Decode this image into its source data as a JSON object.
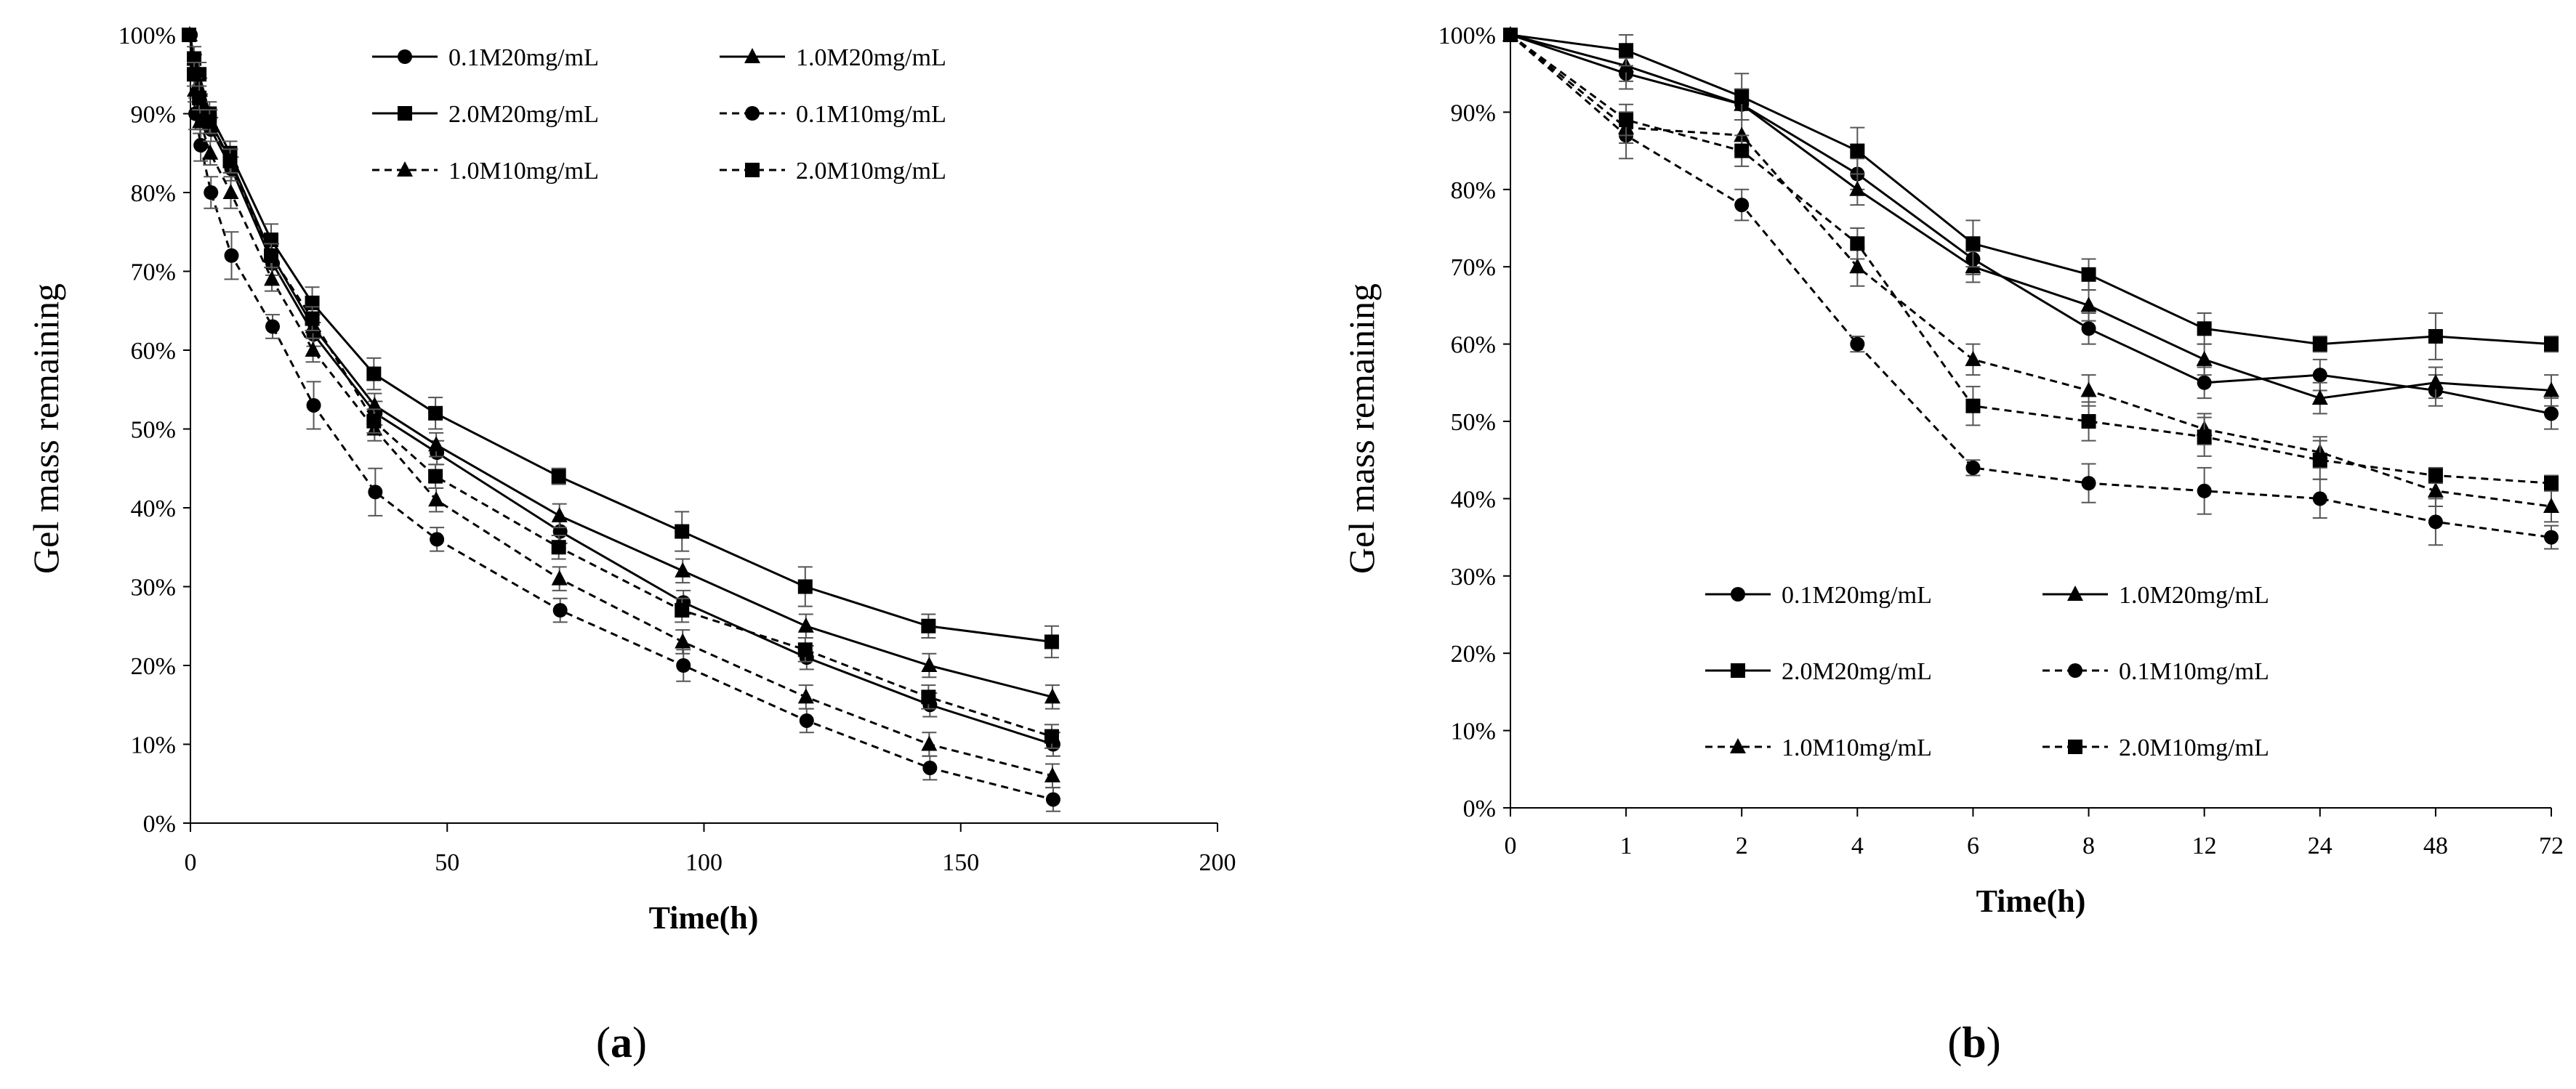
{
  "chart_data": [
    {
      "id": "a",
      "type": "line",
      "caption_open": "(",
      "caption_letter": "a",
      "caption_close": ")",
      "xlabel": "Time(h)",
      "ylabel": "Gel mass remaining",
      "xlim": [
        0,
        200
      ],
      "ylim": [
        0,
        100
      ],
      "x_ticks": [
        0,
        50,
        100,
        150,
        200
      ],
      "y_ticks": [
        "0%",
        "10%",
        "20%",
        "30%",
        "40%",
        "50%",
        "60%",
        "70%",
        "80%",
        "90%",
        "100%"
      ],
      "legend_position": "top-right",
      "x": [
        0,
        1,
        2,
        4,
        8,
        16,
        24,
        36,
        48,
        72,
        96,
        120,
        144,
        168
      ],
      "series": [
        {
          "name": "0.1M20mg/mL",
          "marker": "circle",
          "dashed": false,
          "values": [
            100,
            95,
            91,
            88,
            83,
            71,
            62,
            52,
            47,
            37,
            28,
            21,
            15,
            10
          ],
          "errors": [
            0,
            1.5,
            1.5,
            1.5,
            1.5,
            1.5,
            1.5,
            1.5,
            1.5,
            1.5,
            1.5,
            1.5,
            1.5,
            1.5
          ]
        },
        {
          "name": "1.0M20mg/mL",
          "marker": "triangle",
          "dashed": false,
          "values": [
            100,
            96,
            93,
            89,
            84,
            72,
            63,
            53,
            48,
            39,
            32,
            25,
            20,
            16
          ],
          "errors": [
            0,
            1.5,
            1.5,
            1.5,
            1.5,
            1.5,
            1.5,
            1.5,
            1.5,
            1.5,
            1.5,
            1.5,
            1.5,
            1.5
          ]
        },
        {
          "name": "2.0M20mg/mL",
          "marker": "square",
          "dashed": false,
          "values": [
            100,
            97,
            95,
            90,
            85,
            74,
            66,
            57,
            52,
            44,
            37,
            30,
            25,
            23
          ],
          "errors": [
            0,
            1.5,
            1.5,
            1.5,
            1.5,
            2,
            2,
            2,
            2,
            1,
            2.5,
            2.5,
            1.5,
            2
          ]
        },
        {
          "name": "0.1M10mg/mL",
          "marker": "circle",
          "dashed": true,
          "values": [
            100,
            90,
            86,
            80,
            72,
            63,
            53,
            42,
            36,
            27,
            20,
            13,
            7,
            3
          ],
          "errors": [
            0,
            2,
            2,
            2,
            3,
            1.5,
            3,
            3,
            1.5,
            1.5,
            2,
            1.5,
            1.5,
            1.5
          ]
        },
        {
          "name": "1.0M10mg/mL",
          "marker": "triangle",
          "dashed": true,
          "values": [
            100,
            93,
            89,
            85,
            80,
            69,
            60,
            50,
            41,
            31,
            23,
            16,
            10,
            6
          ],
          "errors": [
            0,
            1.5,
            1.5,
            1.5,
            2,
            1.5,
            1.5,
            1.5,
            1.5,
            1.5,
            1.5,
            1.5,
            1.5,
            1.5
          ]
        },
        {
          "name": "2.0M10mg/mL",
          "marker": "square",
          "dashed": true,
          "values": [
            100,
            95,
            92,
            89,
            84,
            72,
            64,
            51,
            44,
            35,
            27,
            22,
            16,
            11
          ],
          "errors": [
            0,
            1.5,
            1.5,
            1.5,
            1.5,
            1.5,
            1.5,
            1.5,
            1.5,
            1.5,
            1.5,
            1.5,
            1.5,
            1.5
          ]
        }
      ]
    },
    {
      "id": "b",
      "type": "line",
      "caption_open": "(",
      "caption_letter": "b",
      "caption_close": ")",
      "xlabel": "Time(h)",
      "ylabel": "Gel mass remaining",
      "ylim": [
        0,
        100
      ],
      "categories": [
        "0",
        "1",
        "2",
        "4",
        "6",
        "8",
        "12",
        "24",
        "48",
        "72"
      ],
      "y_ticks": [
        "0%",
        "10%",
        "20%",
        "30%",
        "40%",
        "50%",
        "60%",
        "70%",
        "80%",
        "90%",
        "100%"
      ],
      "legend_position": "bottom-center",
      "series": [
        {
          "name": "0.1M20mg/mL",
          "marker": "circle",
          "dashed": false,
          "values": [
            100,
            95,
            91,
            82,
            71,
            62,
            55,
            56,
            54,
            51
          ],
          "errors": [
            0,
            2,
            2,
            2,
            2,
            2,
            2,
            2,
            2,
            2
          ]
        },
        {
          "name": "1.0M20mg/mL",
          "marker": "triangle",
          "dashed": false,
          "values": [
            100,
            96,
            91,
            80,
            70,
            65,
            58,
            53,
            55,
            54
          ],
          "errors": [
            0,
            2,
            2,
            2,
            2,
            2,
            2,
            2,
            2,
            2
          ]
        },
        {
          "name": "2.0M20mg/mL",
          "marker": "square",
          "dashed": false,
          "values": [
            100,
            98,
            92,
            85,
            73,
            69,
            62,
            60,
            61,
            60
          ],
          "errors": [
            0,
            2,
            3,
            3,
            3,
            2,
            2,
            1,
            3,
            1
          ]
        },
        {
          "name": "0.1M10mg/mL",
          "marker": "circle",
          "dashed": true,
          "values": [
            100,
            87,
            78,
            60,
            44,
            42,
            41,
            40,
            37,
            35
          ],
          "errors": [
            0,
            3,
            2,
            1,
            1,
            2.5,
            3,
            2.5,
            3,
            1.5
          ]
        },
        {
          "name": "1.0M10mg/mL",
          "marker": "triangle",
          "dashed": true,
          "values": [
            100,
            88,
            87,
            70,
            58,
            54,
            49,
            46,
            41,
            39
          ],
          "errors": [
            0,
            2,
            2,
            2.5,
            2,
            2,
            2,
            2,
            2,
            2
          ]
        },
        {
          "name": "2.0M10mg/mL",
          "marker": "square",
          "dashed": true,
          "values": [
            100,
            89,
            85,
            73,
            52,
            50,
            48,
            45,
            43,
            42
          ],
          "errors": [
            0,
            2,
            2,
            2,
            2.5,
            2.5,
            2.5,
            2.5,
            1,
            1
          ]
        }
      ]
    }
  ]
}
